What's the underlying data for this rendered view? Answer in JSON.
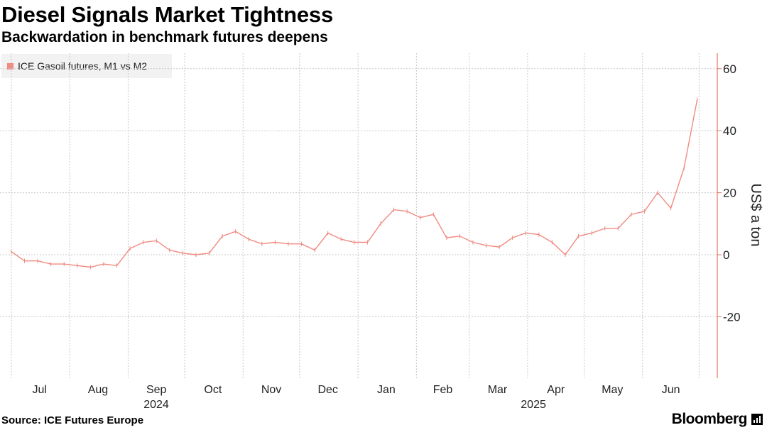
{
  "title": "Diesel Signals Market Tightness",
  "subtitle": "Backwardation in benchmark futures deepens",
  "legend_label": "ICE Gasoil futures, M1 vs M2",
  "source": "Source: ICE Futures Europe",
  "brand": "Bloomberg",
  "colors": {
    "series": "#f08a80",
    "axis": "#e8735f",
    "grid": "#c8c8c8"
  },
  "chart_data": {
    "type": "line",
    "title": "Diesel Signals Market Tightness",
    "subtitle": "Backwardation in benchmark futures deepens",
    "ylabel": "US$ a ton",
    "ylim": [
      -40,
      65
    ],
    "y_ticks": [
      "60",
      "40",
      "20",
      "0",
      "-20"
    ],
    "month_labels": [
      "Jul",
      "Aug",
      "Sep",
      "Oct",
      "Nov",
      "Dec",
      "Jan",
      "Feb",
      "Mar",
      "Apr",
      "May",
      "Jun"
    ],
    "year_labels": [
      "2024",
      "2025"
    ],
    "grid": true,
    "legend_position": "top-left",
    "series": [
      {
        "name": "ICE Gasoil futures, M1 vs M2",
        "x": [
          "2024-07-01",
          "2024-07-08",
          "2024-07-15",
          "2024-07-22",
          "2024-07-29",
          "2024-08-05",
          "2024-08-12",
          "2024-08-19",
          "2024-08-26",
          "2024-09-02",
          "2024-09-09",
          "2024-09-16",
          "2024-09-23",
          "2024-09-30",
          "2024-10-07",
          "2024-10-14",
          "2024-10-21",
          "2024-10-28",
          "2024-11-04",
          "2024-11-11",
          "2024-11-18",
          "2024-11-25",
          "2024-12-02",
          "2024-12-09",
          "2024-12-16",
          "2024-12-23",
          "2024-12-30",
          "2025-01-06",
          "2025-01-13",
          "2025-01-20",
          "2025-01-27",
          "2025-02-03",
          "2025-02-10",
          "2025-02-17",
          "2025-02-24",
          "2025-03-03",
          "2025-03-10",
          "2025-03-17",
          "2025-03-24",
          "2025-03-31",
          "2025-04-07",
          "2025-04-14",
          "2025-04-21",
          "2025-04-28",
          "2025-05-05",
          "2025-05-12",
          "2025-05-19",
          "2025-05-26",
          "2025-06-02",
          "2025-06-09",
          "2025-06-16",
          "2025-06-23",
          "2025-06-30"
        ],
        "values": [
          1,
          -2,
          -2,
          -3,
          -3,
          -3.5,
          -4,
          -3,
          -3.5,
          2,
          4,
          4.5,
          1.5,
          0.5,
          0,
          0.5,
          6,
          7.5,
          5,
          3.5,
          4,
          3.5,
          3.5,
          1.5,
          7,
          5,
          4,
          4,
          10,
          14.5,
          14,
          12,
          13,
          5.5,
          6,
          4,
          3,
          2.5,
          5.5,
          7,
          6.5,
          4,
          0,
          6,
          7,
          8.5,
          8.5,
          13,
          14,
          20,
          15,
          28,
          50
        ]
      }
    ]
  }
}
